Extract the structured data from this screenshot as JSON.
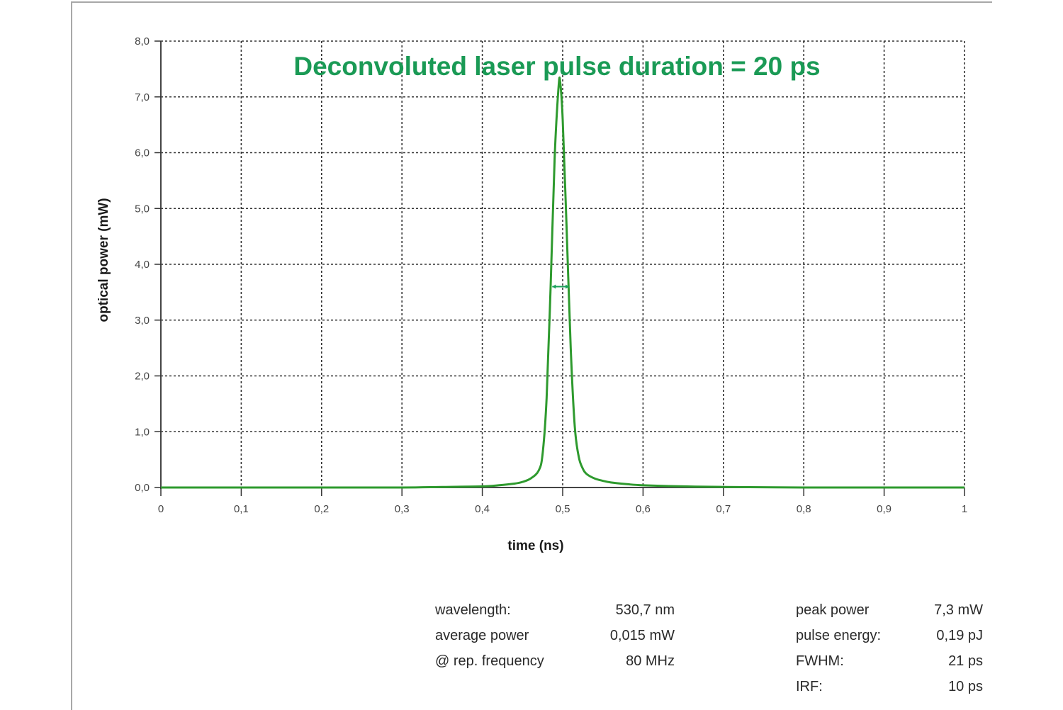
{
  "chart_data": {
    "type": "line",
    "title": "Deconvoluted laser pulse duration = 20 ps",
    "xlabel": "time (ns)",
    "ylabel": "optical power (mW)",
    "xlim": [
      0,
      1
    ],
    "ylim": [
      0,
      8
    ],
    "grid": true,
    "x_ticks": [
      "0",
      "0,1",
      "0,2",
      "0,3",
      "0,4",
      "0,5",
      "0,6",
      "0,7",
      "0,8",
      "0,9",
      "1"
    ],
    "y_ticks": [
      "0,0",
      "1,0",
      "2,0",
      "3,0",
      "4,0",
      "5,0",
      "6,0",
      "7,0",
      "8,0"
    ],
    "series": [
      {
        "name": "optical power",
        "color": "#2e9a2e",
        "x": [
          0,
          0.1,
          0.2,
          0.3,
          0.35,
          0.4,
          0.42,
          0.44,
          0.45,
          0.46,
          0.47,
          0.475,
          0.48,
          0.485,
          0.49,
          0.495,
          0.497,
          0.5,
          0.505,
          0.51,
          0.515,
          0.52,
          0.525,
          0.53,
          0.54,
          0.55,
          0.56,
          0.58,
          0.6,
          0.65,
          0.7,
          0.8,
          0.9,
          1.0
        ],
        "y": [
          0.0,
          0.0,
          0.0,
          0.0,
          0.01,
          0.02,
          0.04,
          0.07,
          0.1,
          0.16,
          0.3,
          0.6,
          1.6,
          3.6,
          5.9,
          7.2,
          7.25,
          6.6,
          4.6,
          2.5,
          1.1,
          0.55,
          0.34,
          0.24,
          0.16,
          0.12,
          0.09,
          0.06,
          0.04,
          0.02,
          0.01,
          0.0,
          0.0,
          0.0
        ]
      }
    ],
    "annotations": [
      {
        "type": "fwhm-marker",
        "x_start": 0.487,
        "x_end": 0.508,
        "y": 3.6,
        "color": "#1aa05a"
      }
    ]
  },
  "title": {
    "text": "Deconvoluted laser pulse duration = 20 ps",
    "color": "#1a9a55"
  },
  "axes": {
    "xlabel": "time (ns)",
    "ylabel": "optical power (mW)"
  },
  "parameters": {
    "left": [
      {
        "label": "wavelength:",
        "value": "530,7 nm"
      },
      {
        "label": "average power",
        "value": "0,015 mW"
      },
      {
        "label": "@ rep. frequency",
        "value": "80 MHz"
      }
    ],
    "right": [
      {
        "label": "peak power",
        "value": "7,3 mW"
      },
      {
        "label": "pulse energy:",
        "value": "0,19 pJ"
      },
      {
        "label": "FWHM:",
        "value": "21 ps"
      },
      {
        "label": "IRF:",
        "value": "10 ps"
      }
    ]
  }
}
